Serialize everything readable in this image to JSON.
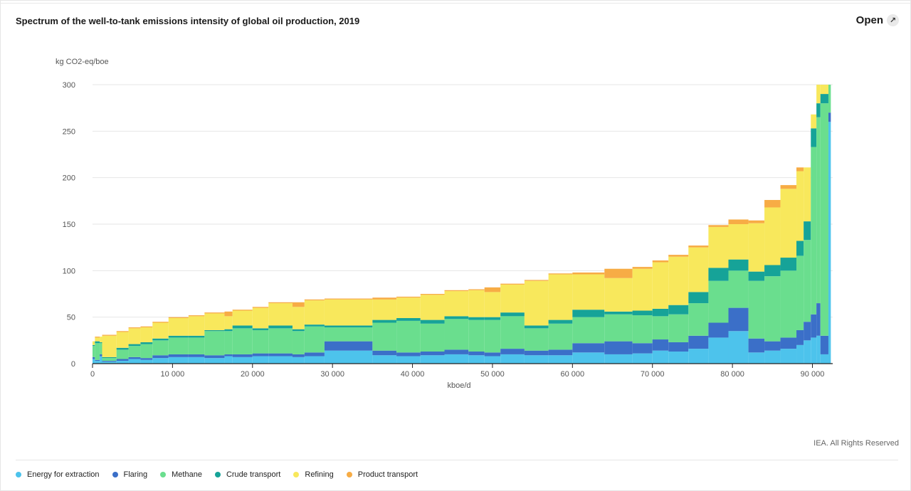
{
  "header": {
    "title": "Spectrum of the well-to-tank emissions intensity of global oil production, 2019",
    "open_label": "Open",
    "open_icon": "external-link-icon"
  },
  "footer": {
    "copyright": "IEA. All Rights Reserved"
  },
  "chart_data": {
    "type": "bar",
    "subtype": "stacked-variable-width",
    "title": "Spectrum of the well-to-tank emissions intensity of global oil production, 2019",
    "ylabel": "kg CO2-eq/boe",
    "xlabel": "kboe/d",
    "xlim": [
      0,
      92500
    ],
    "ylim": [
      0,
      300
    ],
    "x_ticks": [
      {
        "value": 0,
        "label": "0"
      },
      {
        "value": 10000,
        "label": "10 000"
      },
      {
        "value": 20000,
        "label": "20 000"
      },
      {
        "value": 30000,
        "label": "30 000"
      },
      {
        "value": 40000,
        "label": "40 000"
      },
      {
        "value": 50000,
        "label": "50 000"
      },
      {
        "value": 60000,
        "label": "60 000"
      },
      {
        "value": 70000,
        "label": "70 000"
      },
      {
        "value": 80000,
        "label": "80 000"
      },
      {
        "value": 90000,
        "label": "90 000"
      }
    ],
    "y_ticks": [
      {
        "value": 0,
        "label": "0"
      },
      {
        "value": 50,
        "label": "50"
      },
      {
        "value": 100,
        "label": "100"
      },
      {
        "value": 150,
        "label": "150"
      },
      {
        "value": 200,
        "label": "200"
      },
      {
        "value": 250,
        "label": "250"
      },
      {
        "value": 300,
        "label": "300"
      }
    ],
    "grid": true,
    "legend_position": "bottom",
    "series": [
      {
        "name": "Energy for extraction",
        "color": "#4dc3ec"
      },
      {
        "name": "Flaring",
        "color": "#3b6fc8"
      },
      {
        "name": "Methane",
        "color": "#6ade8e"
      },
      {
        "name": "Crude transport",
        "color": "#16a398"
      },
      {
        "name": "Refining",
        "color": "#f8e85c"
      },
      {
        "name": "Product transport",
        "color": "#f7ac45"
      }
    ],
    "segments": [
      {
        "x0": 0,
        "x1": 300,
        "values": [
          5,
          2,
          12,
          1,
          4,
          0
        ]
      },
      {
        "x0": 300,
        "x1": 900,
        "values": [
          3,
          1,
          18,
          2,
          4,
          1
        ]
      },
      {
        "x0": 900,
        "x1": 1200,
        "values": [
          8,
          2,
          12,
          1,
          6,
          0
        ]
      },
      {
        "x0": 1200,
        "x1": 3000,
        "values": [
          2,
          1,
          3,
          1,
          23,
          1
        ]
      },
      {
        "x0": 3000,
        "x1": 4500,
        "values": [
          3,
          2,
          10,
          2,
          17,
          1
        ]
      },
      {
        "x0": 4500,
        "x1": 6000,
        "values": [
          5,
          2,
          12,
          2,
          17,
          1
        ]
      },
      {
        "x0": 6000,
        "x1": 7500,
        "values": [
          4,
          2,
          15,
          2,
          16,
          1
        ]
      },
      {
        "x0": 7500,
        "x1": 9500,
        "values": [
          6,
          3,
          16,
          2,
          17,
          1
        ]
      },
      {
        "x0": 9500,
        "x1": 12000,
        "values": [
          7,
          3,
          18,
          2,
          19,
          1
        ]
      },
      {
        "x0": 12000,
        "x1": 14000,
        "values": [
          7,
          3,
          18,
          2,
          21,
          1
        ]
      },
      {
        "x0": 14000,
        "x1": 16500,
        "values": [
          6,
          3,
          26,
          1,
          18,
          1
        ]
      },
      {
        "x0": 16500,
        "x1": 17500,
        "values": [
          8,
          2,
          25,
          2,
          14,
          5
        ]
      },
      {
        "x0": 17500,
        "x1": 20000,
        "values": [
          7,
          3,
          28,
          3,
          16,
          1
        ]
      },
      {
        "x0": 20000,
        "x1": 22000,
        "values": [
          8,
          3,
          25,
          2,
          22,
          1
        ]
      },
      {
        "x0": 22000,
        "x1": 25000,
        "values": [
          8,
          3,
          27,
          3,
          24,
          1
        ]
      },
      {
        "x0": 25000,
        "x1": 26500,
        "values": [
          7,
          3,
          25,
          2,
          24,
          5
        ]
      },
      {
        "x0": 26500,
        "x1": 29000,
        "values": [
          8,
          4,
          28,
          2,
          26,
          1
        ]
      },
      {
        "x0": 29000,
        "x1": 35000,
        "values": [
          14,
          10,
          15,
          2,
          28,
          1
        ]
      },
      {
        "x0": 35000,
        "x1": 38000,
        "values": [
          9,
          5,
          30,
          3,
          22,
          2
        ]
      },
      {
        "x0": 38000,
        "x1": 41000,
        "values": [
          8,
          4,
          34,
          3,
          22,
          1
        ]
      },
      {
        "x0": 41000,
        "x1": 44000,
        "values": [
          9,
          4,
          30,
          4,
          27,
          1
        ]
      },
      {
        "x0": 44000,
        "x1": 47000,
        "values": [
          10,
          5,
          33,
          3,
          27,
          1
        ]
      },
      {
        "x0": 47000,
        "x1": 49000,
        "values": [
          9,
          4,
          34,
          3,
          29,
          1
        ]
      },
      {
        "x0": 49000,
        "x1": 51000,
        "values": [
          8,
          4,
          35,
          3,
          27,
          5
        ]
      },
      {
        "x0": 51000,
        "x1": 54000,
        "values": [
          10,
          6,
          35,
          4,
          30,
          1
        ]
      },
      {
        "x0": 54000,
        "x1": 57000,
        "values": [
          9,
          5,
          24,
          3,
          48,
          1
        ]
      },
      {
        "x0": 57000,
        "x1": 60000,
        "values": [
          9,
          6,
          28,
          4,
          49,
          1
        ]
      },
      {
        "x0": 60000,
        "x1": 64000,
        "values": [
          12,
          10,
          28,
          8,
          38,
          2
        ]
      },
      {
        "x0": 64000,
        "x1": 67500,
        "values": [
          10,
          14,
          29,
          3,
          36,
          10
        ]
      },
      {
        "x0": 67500,
        "x1": 70000,
        "values": [
          11,
          11,
          30,
          5,
          45,
          2
        ]
      },
      {
        "x0": 70000,
        "x1": 72000,
        "values": [
          14,
          12,
          25,
          8,
          50,
          2
        ]
      },
      {
        "x0": 72000,
        "x1": 74500,
        "values": [
          13,
          10,
          30,
          10,
          52,
          2
        ]
      },
      {
        "x0": 74500,
        "x1": 77000,
        "values": [
          16,
          14,
          35,
          12,
          48,
          2
        ]
      },
      {
        "x0": 77000,
        "x1": 79500,
        "values": [
          28,
          16,
          45,
          14,
          44,
          2
        ]
      },
      {
        "x0": 79500,
        "x1": 82000,
        "values": [
          35,
          25,
          40,
          12,
          38,
          5
        ]
      },
      {
        "x0": 82000,
        "x1": 84000,
        "values": [
          12,
          15,
          62,
          10,
          52,
          3
        ]
      },
      {
        "x0": 84000,
        "x1": 86000,
        "values": [
          14,
          10,
          70,
          12,
          62,
          8
        ]
      },
      {
        "x0": 86000,
        "x1": 88000,
        "values": [
          16,
          12,
          72,
          14,
          74,
          4
        ]
      },
      {
        "x0": 88000,
        "x1": 88900,
        "values": [
          20,
          16,
          80,
          16,
          75,
          4
        ]
      },
      {
        "x0": 88900,
        "x1": 89800,
        "values": [
          25,
          20,
          88,
          20,
          58,
          0
        ]
      },
      {
        "x0": 89800,
        "x1": 90500,
        "values": [
          28,
          25,
          180,
          20,
          15,
          0
        ]
      },
      {
        "x0": 90500,
        "x1": 91000,
        "values": [
          30,
          35,
          200,
          15,
          20,
          0
        ]
      },
      {
        "x0": 91000,
        "x1": 92000,
        "values": [
          10,
          20,
          250,
          10,
          10,
          0
        ]
      },
      {
        "x0": 92000,
        "x1": 92300,
        "values": [
          260,
          10,
          30,
          0,
          0,
          0
        ]
      }
    ]
  }
}
